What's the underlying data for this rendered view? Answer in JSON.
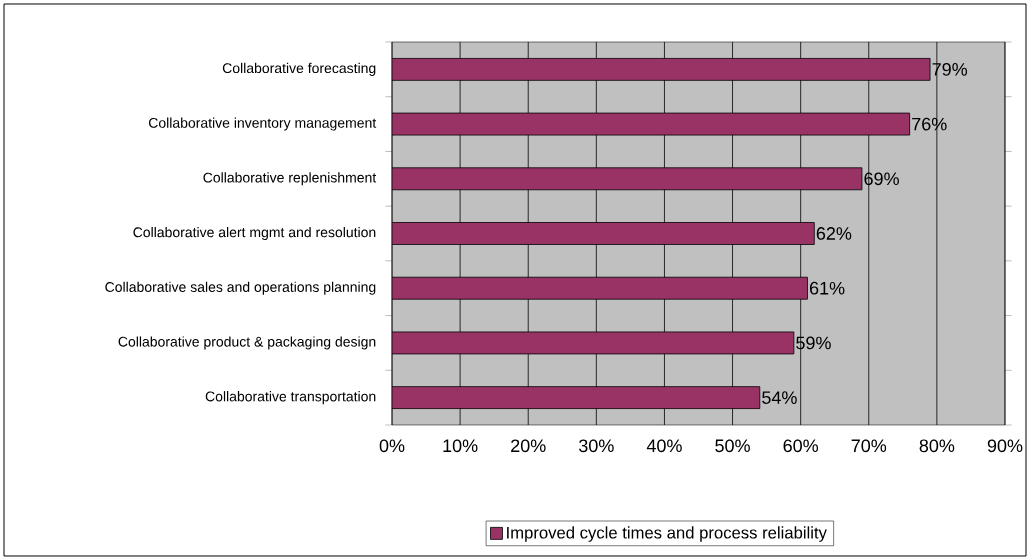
{
  "chart_data": {
    "type": "bar",
    "orientation": "horizontal",
    "categories": [
      "Collaborative forecasting",
      "Collaborative inventory management",
      "Collaborative replenishment",
      "Collaborative alert mgmt and resolution",
      "Collaborative sales and operations planning",
      "Collaborative product & packaging design",
      "Collaborative transportation"
    ],
    "series": [
      {
        "name": "Improved cycle times and process reliability",
        "color": "#993366",
        "values": [
          79,
          76,
          69,
          62,
          61,
          59,
          54
        ],
        "value_labels": [
          "79%",
          "76%",
          "69%",
          "62%",
          "61%",
          "59%",
          "54%"
        ]
      }
    ],
    "xlim": [
      0,
      90
    ],
    "xticks": [
      {
        "value": 0,
        "label": "0%"
      },
      {
        "value": 10,
        "label": "10%"
      },
      {
        "value": 20,
        "label": "20%"
      },
      {
        "value": 30,
        "label": "30%"
      },
      {
        "value": 40,
        "label": "40%"
      },
      {
        "value": 50,
        "label": "50%"
      },
      {
        "value": 60,
        "label": "60%"
      },
      {
        "value": 70,
        "label": "70%"
      },
      {
        "value": 80,
        "label": "80%"
      },
      {
        "value": 90,
        "label": "90%"
      }
    ],
    "grid": "x",
    "legend": "bottom"
  }
}
